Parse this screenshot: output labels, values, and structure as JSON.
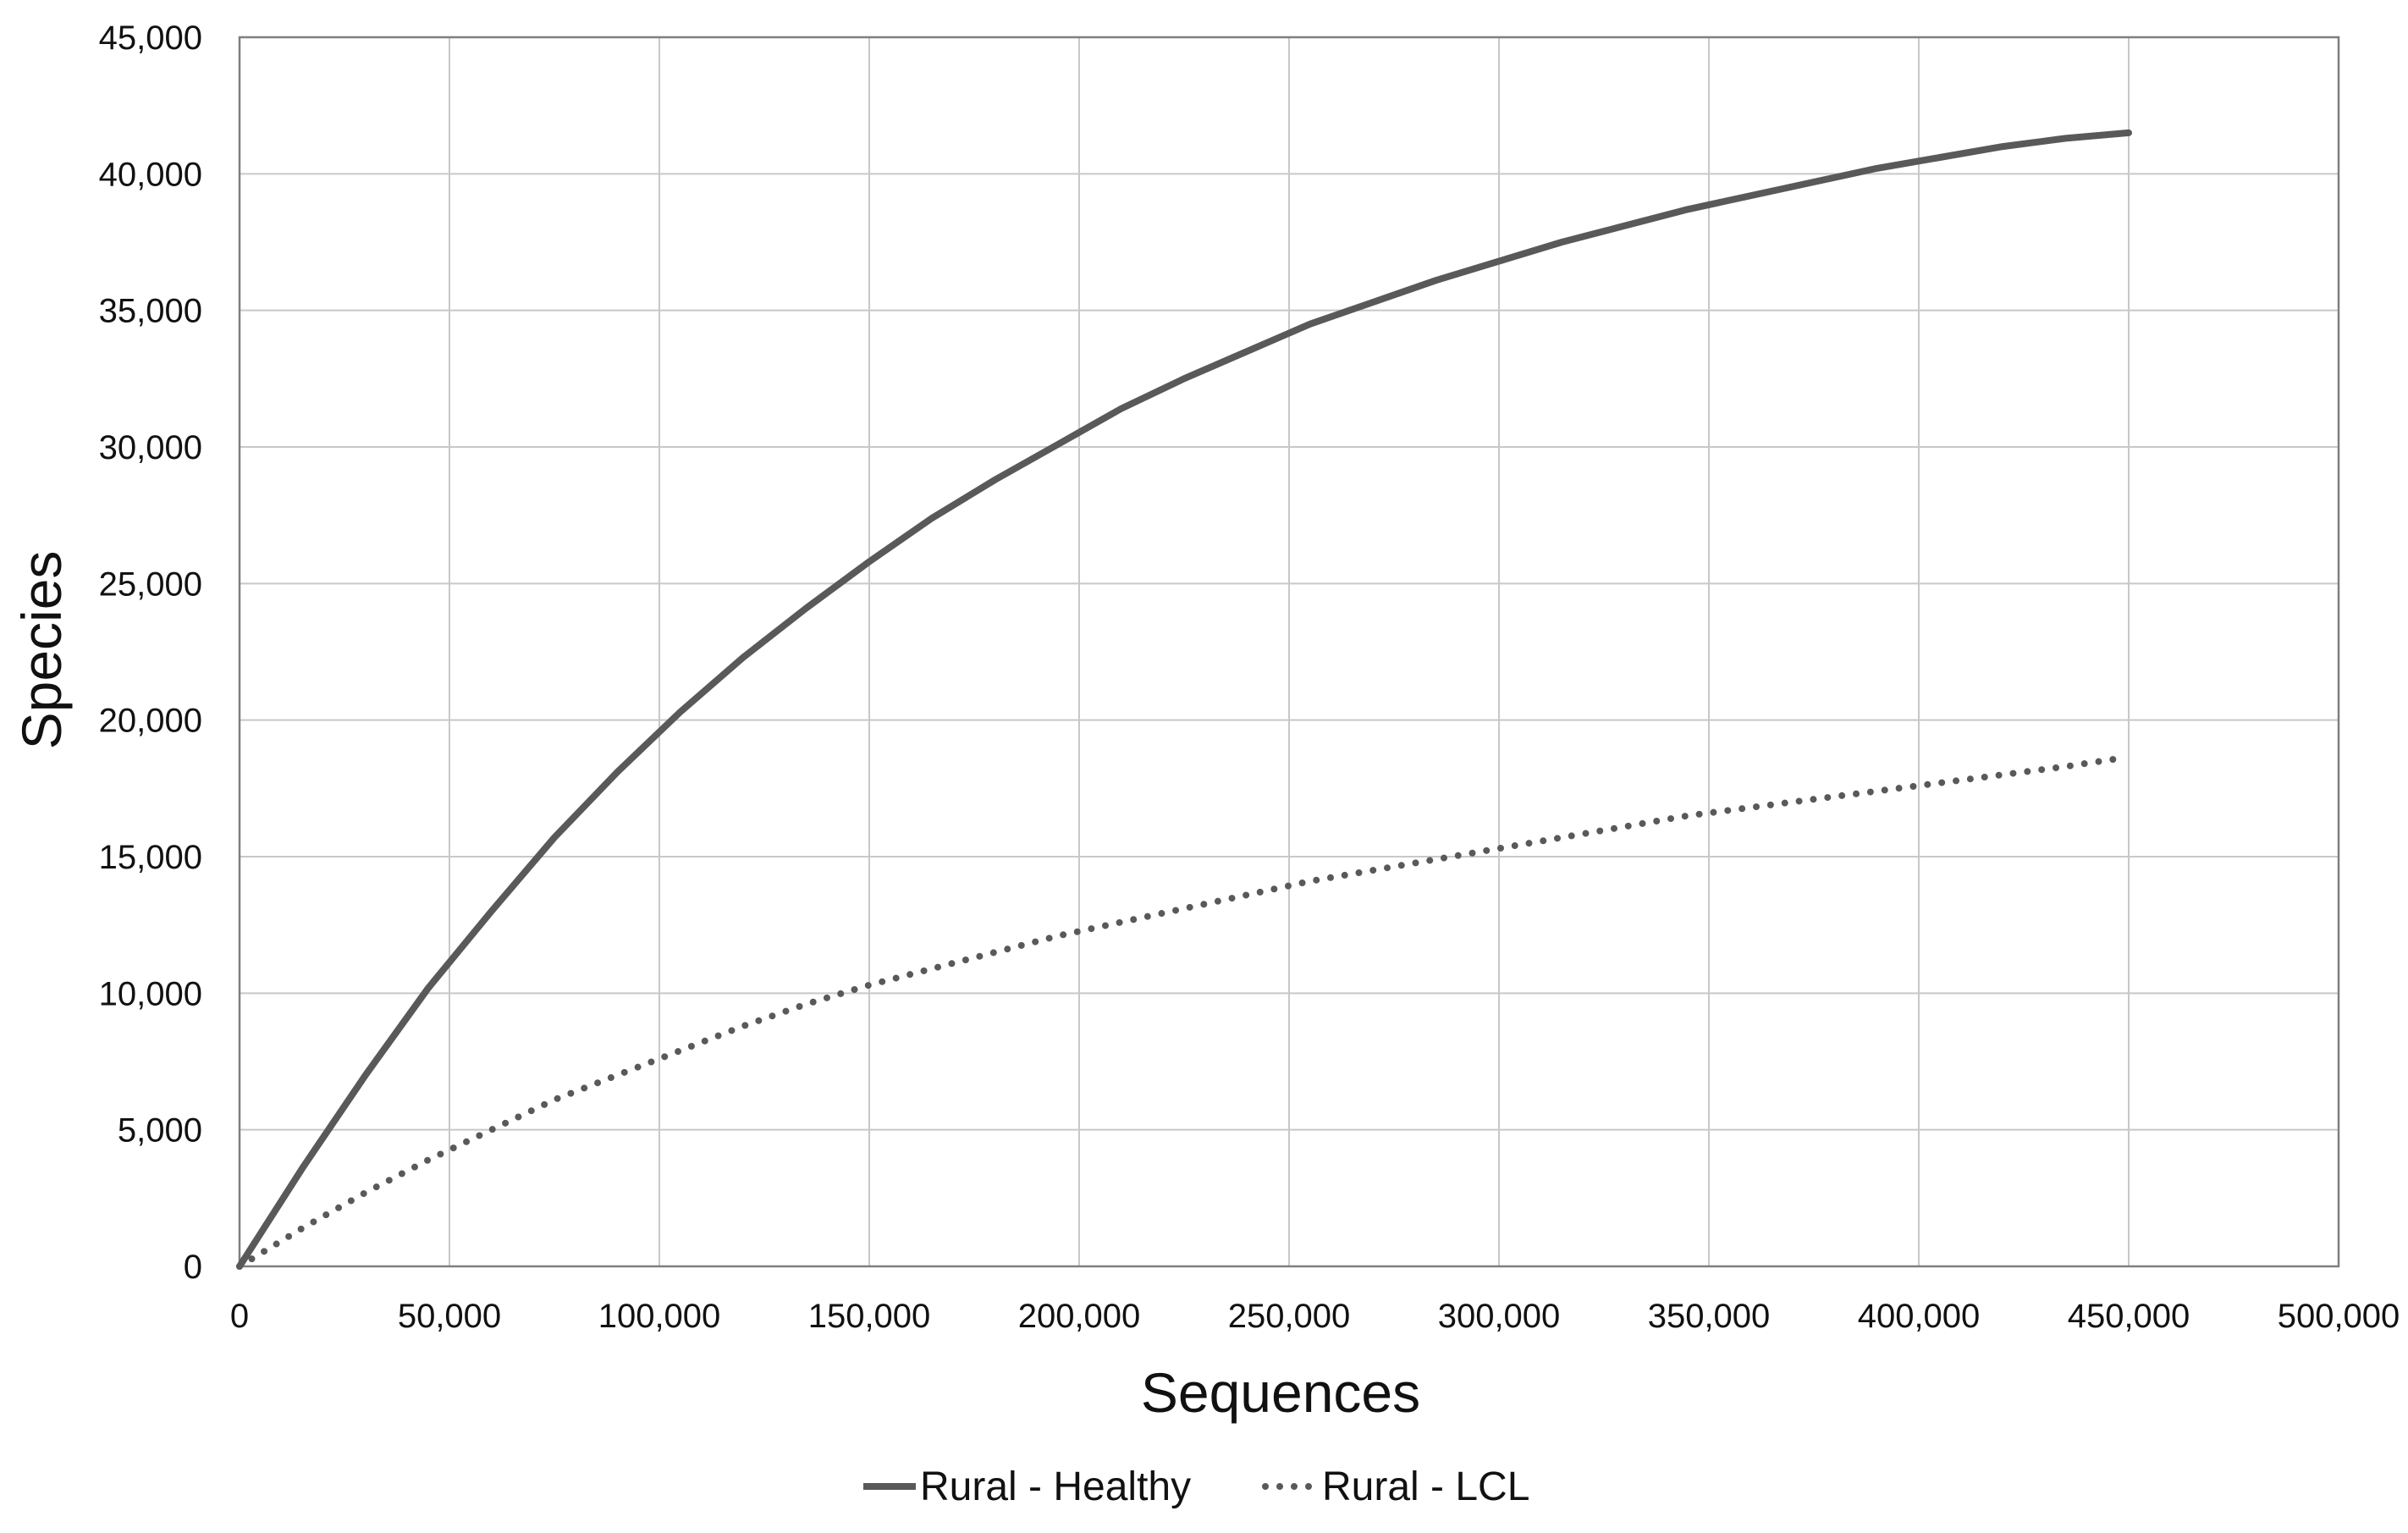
{
  "chart_data": {
    "type": "line",
    "title": "",
    "xlabel": "Sequences",
    "ylabel": "Species",
    "xlim": [
      0,
      500000
    ],
    "ylim": [
      0,
      45000
    ],
    "x_ticks": [
      0,
      50000,
      100000,
      150000,
      200000,
      250000,
      300000,
      350000,
      400000,
      450000,
      500000
    ],
    "x_tick_labels": [
      "0",
      "50,000",
      "100,000",
      "150,000",
      "200,000",
      "250,000",
      "300,000",
      "350,000",
      "400,000",
      "450,000",
      "500,000"
    ],
    "y_ticks": [
      0,
      5000,
      10000,
      15000,
      20000,
      25000,
      30000,
      35000,
      40000,
      45000
    ],
    "y_tick_labels": [
      "0",
      "5,000",
      "10,000",
      "15,000",
      "20,000",
      "25,000",
      "30,000",
      "35,000",
      "40,000",
      "45,000"
    ],
    "grid": true,
    "legend_position": "bottom",
    "series": [
      {
        "name": "Rural - Healthy",
        "style": "solid",
        "color": "#595959",
        "x": [
          0,
          15000,
          30000,
          45000,
          60000,
          75000,
          90000,
          105000,
          120000,
          135000,
          150000,
          165000,
          180000,
          195000,
          210000,
          225000,
          240000,
          255000,
          270000,
          285000,
          300000,
          315000,
          330000,
          345000,
          360000,
          375000,
          390000,
          405000,
          420000,
          435000,
          450000
        ],
        "y": [
          0,
          3600,
          7000,
          10200,
          13000,
          15700,
          18100,
          20300,
          22300,
          24100,
          25800,
          27400,
          28800,
          30100,
          31400,
          32500,
          33500,
          34500,
          35300,
          36100,
          36800,
          37500,
          38100,
          38700,
          39200,
          39700,
          40200,
          40600,
          41000,
          41300,
          41500
        ]
      },
      {
        "name": "Rural - LCL",
        "style": "dotted",
        "color": "#595959",
        "x": [
          0,
          15000,
          30000,
          45000,
          60000,
          75000,
          90000,
          105000,
          120000,
          135000,
          150000,
          165000,
          180000,
          195000,
          210000,
          225000,
          240000,
          255000,
          270000,
          285000,
          300000,
          315000,
          330000,
          345000,
          360000,
          375000,
          390000,
          405000,
          420000,
          435000,
          448000
        ],
        "y": [
          0,
          1400,
          2700,
          3900,
          5000,
          6100,
          7000,
          7900,
          8800,
          9600,
          10300,
          10900,
          11500,
          12100,
          12600,
          13100,
          13600,
          14100,
          14500,
          14900,
          15300,
          15700,
          16100,
          16500,
          16800,
          17100,
          17400,
          17700,
          18000,
          18300,
          18600
        ]
      }
    ]
  }
}
